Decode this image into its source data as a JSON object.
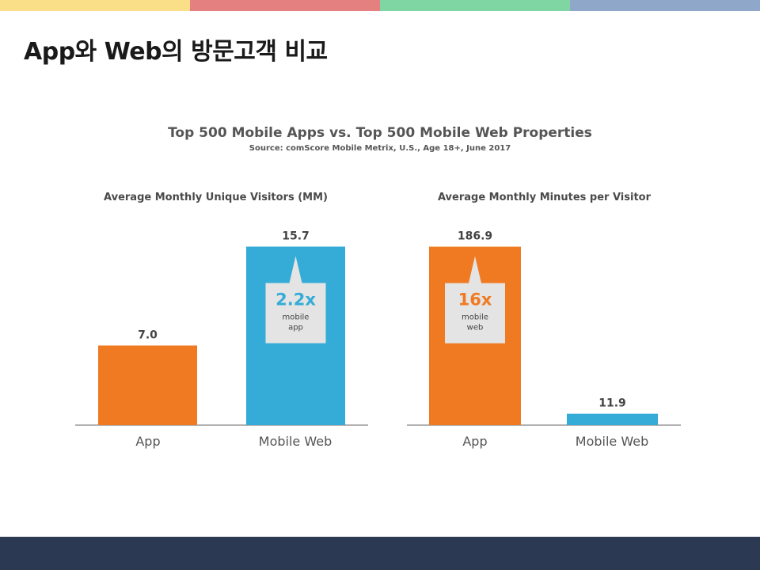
{
  "slide": {
    "title": "App와 Web의 방문고객 비교"
  },
  "colors": {
    "top_bar": [
      "#fbdf88",
      "#e48080",
      "#7fd6a3",
      "#8fa7c8"
    ],
    "footer": "#2b3a52",
    "app": "#f07a22",
    "mobile_web": "#35acd7",
    "callout_bg": "#e4e4e4"
  },
  "chart_data": [
    {
      "type": "bar",
      "title": "Top 500 Mobile Apps vs. Top 500 Mobile Web Properties",
      "subtitle": "Source: comScore Mobile Metrix, U.S., Age 18+, June 2017",
      "panel_title": "Average Monthly Unique Visitors (MM)",
      "categories": [
        "App",
        "Mobile Web"
      ],
      "values": [
        7.0,
        15.7
      ],
      "value_labels": [
        "7.0",
        "15.7"
      ],
      "ylim": [
        0,
        16.5
      ],
      "grid": false,
      "annotation": {
        "bar": "Mobile Web",
        "value": "2.2x",
        "line1": "mobile",
        "line2": "app"
      }
    },
    {
      "type": "bar",
      "title": "",
      "panel_title": "Average Monthly Minutes per Visitor",
      "categories": [
        "App",
        "Mobile Web"
      ],
      "values": [
        186.9,
        11.9
      ],
      "value_labels": [
        "186.9",
        "11.9"
      ],
      "ylim": [
        0,
        196.5
      ],
      "grid": false,
      "annotation": {
        "bar": "App",
        "value": "16x",
        "line1": "mobile",
        "line2": "web"
      }
    }
  ]
}
